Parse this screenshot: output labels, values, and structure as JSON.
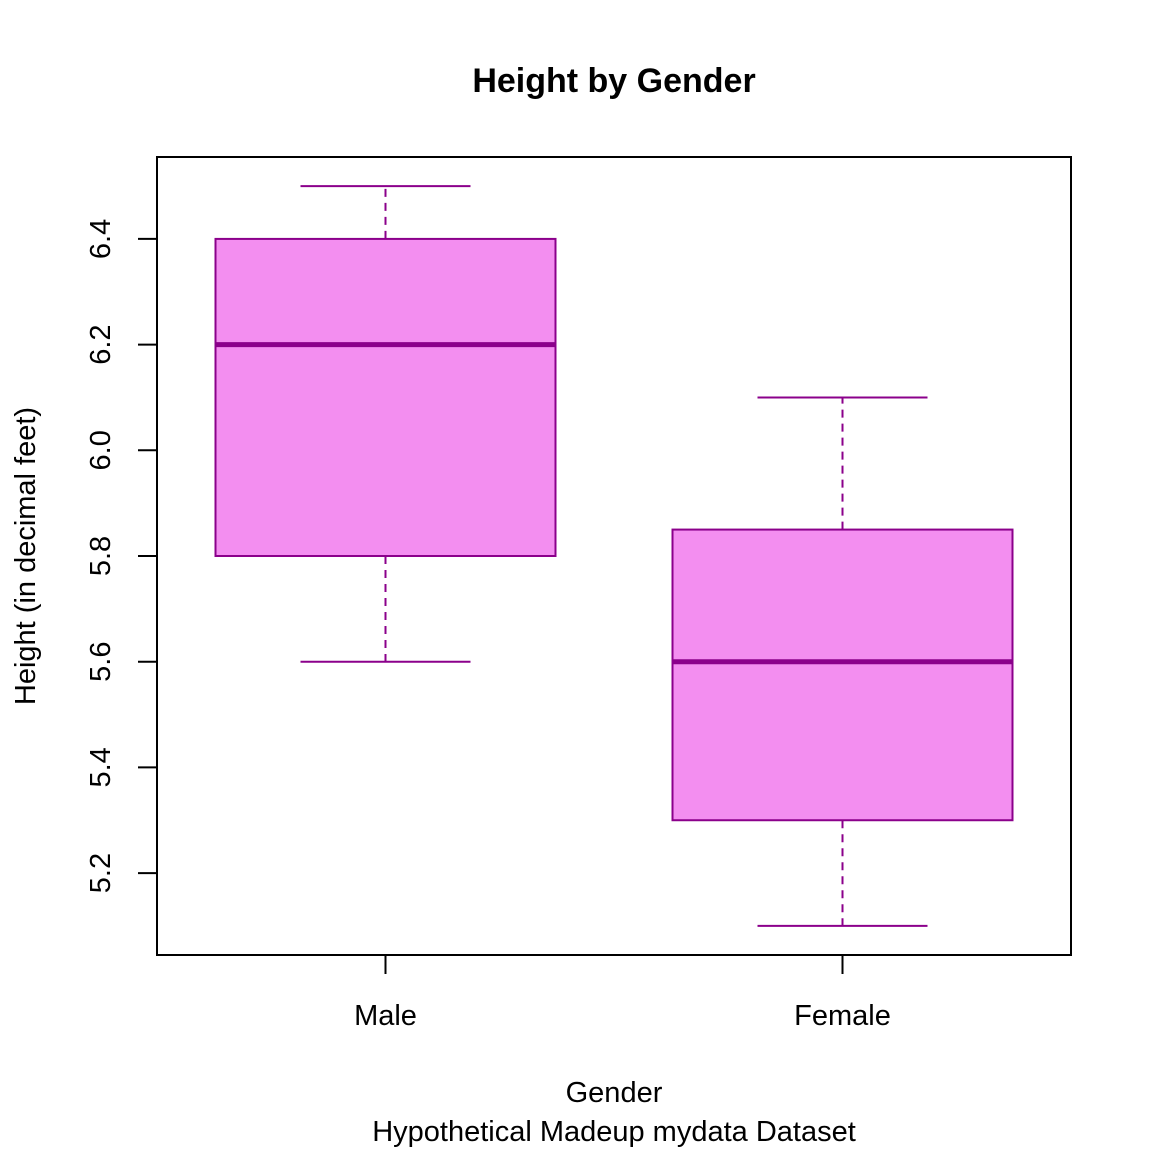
{
  "chart_data": {
    "type": "boxplot",
    "title": "Height by Gender",
    "xlabel": "Gender",
    "subtitle": "Hypothetical Madeup mydata Dataset",
    "ylabel": "Height (in decimal feet)",
    "ylim": [
      5.045,
      6.555
    ],
    "yticks": [
      5.2,
      5.4,
      5.6,
      5.8,
      6.0,
      6.2,
      6.4
    ],
    "ytick_labels": [
      "5.2",
      "5.4",
      "5.6",
      "5.8",
      "6.0",
      "6.2",
      "6.4"
    ],
    "categories": [
      "Male",
      "Female"
    ],
    "boxes": [
      {
        "category": "Male",
        "min": 5.6,
        "q1": 5.8,
        "median": 6.2,
        "q3": 6.4,
        "max": 6.5
      },
      {
        "category": "Female",
        "min": 5.1,
        "q1": 5.3,
        "median": 5.6,
        "q3": 5.85,
        "max": 6.1
      }
    ],
    "colors": {
      "fill": "#F38EF0",
      "border": "#8B008B"
    },
    "grid": false,
    "legend": "none"
  }
}
